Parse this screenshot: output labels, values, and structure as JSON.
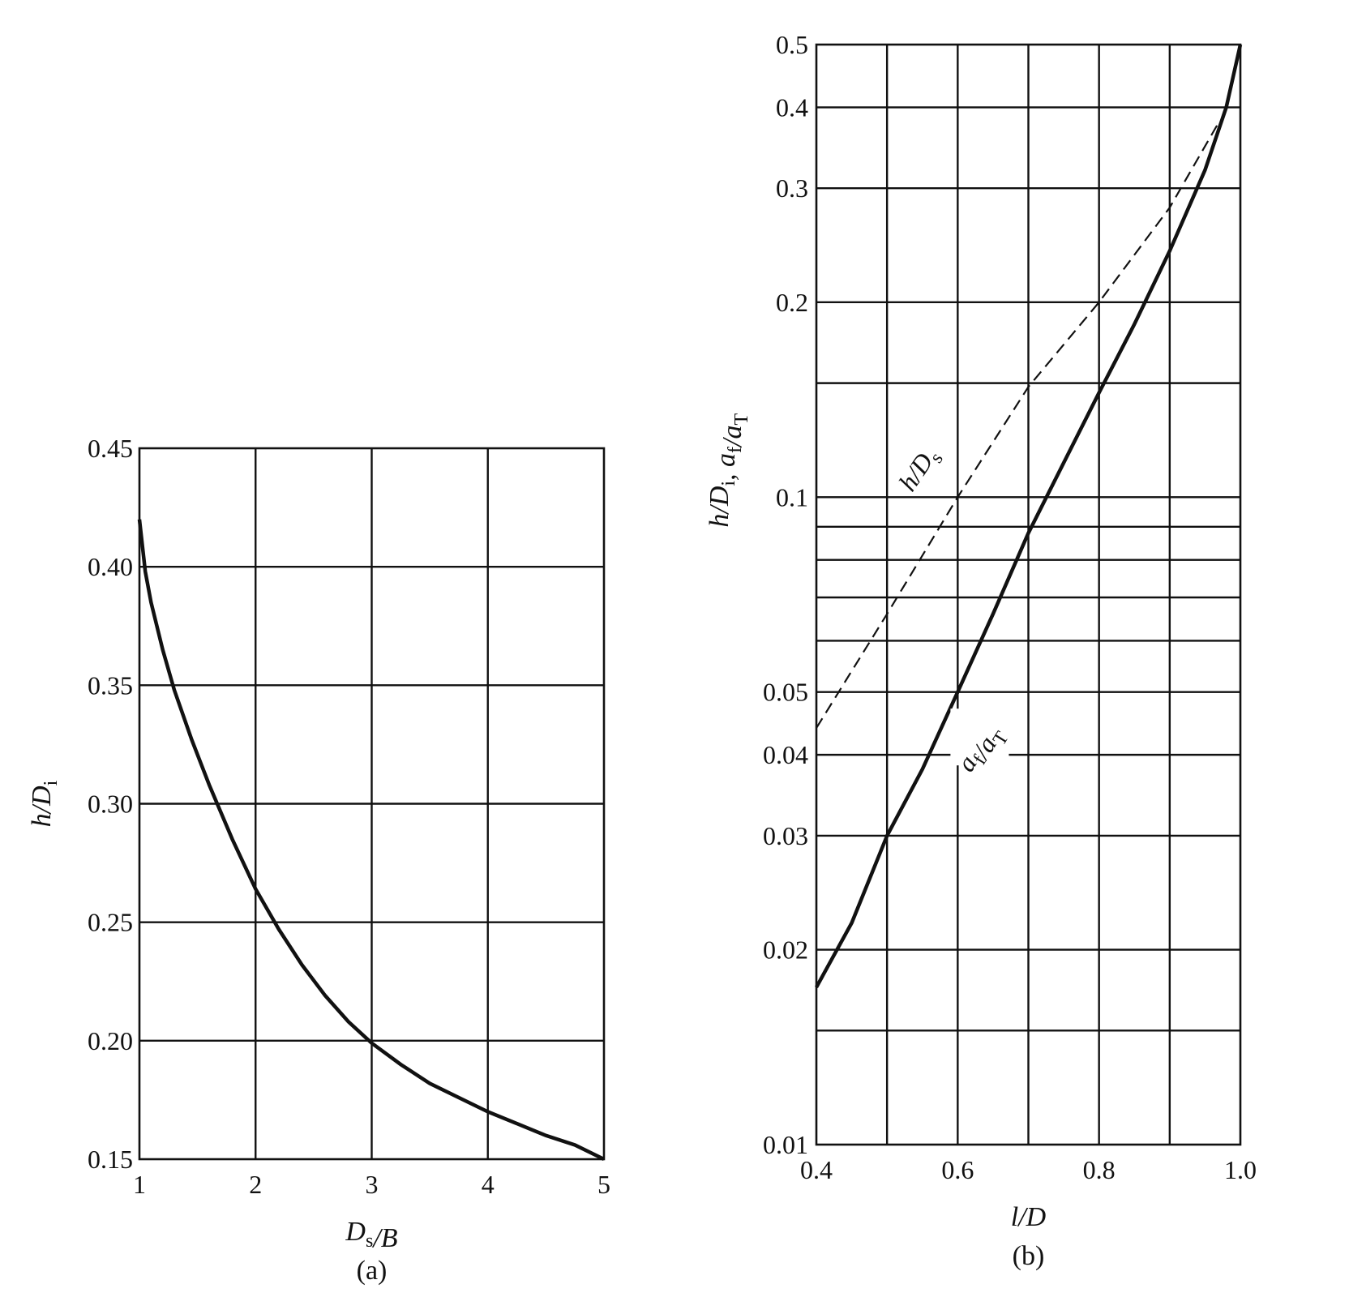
{
  "chart_data": [
    {
      "type": "line",
      "xlabel": "Ds/B",
      "ylabel": "h/Di",
      "caption": "(a)",
      "x_ticks": [
        "1",
        "2",
        "3",
        "4",
        "5"
      ],
      "y_ticks": [
        "0.15",
        "0.20",
        "0.25",
        "0.30",
        "0.35",
        "0.40",
        "0.45"
      ],
      "xlim": [
        1,
        5
      ],
      "ylim": [
        0.15,
        0.45
      ],
      "grid": true,
      "series": [
        {
          "style": "solid",
          "x": [
            1.0,
            1.05,
            1.1,
            1.2,
            1.3,
            1.45,
            1.6,
            1.8,
            2.0,
            2.2,
            2.4,
            2.6,
            2.8,
            3.0,
            3.25,
            3.5,
            3.75,
            4.0,
            4.25,
            4.5,
            4.75,
            5.0
          ],
          "y": [
            0.42,
            0.398,
            0.385,
            0.365,
            0.348,
            0.327,
            0.308,
            0.285,
            0.264,
            0.247,
            0.232,
            0.219,
            0.208,
            0.199,
            0.19,
            0.182,
            0.176,
            0.17,
            0.165,
            0.16,
            0.156,
            0.15
          ]
        }
      ]
    },
    {
      "type": "line",
      "xlabel": "l/D",
      "ylabel": "h/Di, af/aT",
      "caption": "(b)",
      "x_ticks": [
        "0.4",
        "0.6",
        "0.8",
        "1.0"
      ],
      "y_ticks": [
        "0.01",
        "0.02",
        "0.03",
        "0.04",
        "0.05",
        "0.1",
        "0.2",
        "0.3",
        "0.4",
        "0.5"
      ],
      "xlim": [
        0.4,
        1.0
      ],
      "ylim": [
        0.01,
        0.5
      ],
      "y_scale": "log",
      "grid": true,
      "series": [
        {
          "name": "h/Ds",
          "style": "dashed",
          "x": [
            0.4,
            0.5,
            0.6,
            0.7,
            0.8,
            0.9,
            0.97
          ],
          "y": [
            0.044,
            0.066,
            0.1,
            0.148,
            0.2,
            0.28,
            0.38
          ]
        },
        {
          "name": "af/aT",
          "style": "solid",
          "x": [
            0.4,
            0.45,
            0.5,
            0.55,
            0.6,
            0.65,
            0.7,
            0.75,
            0.8,
            0.85,
            0.9,
            0.95,
            0.98,
            1.0
          ],
          "y": [
            0.0175,
            0.022,
            0.03,
            0.038,
            0.05,
            0.066,
            0.088,
            0.113,
            0.145,
            0.185,
            0.24,
            0.32,
            0.4,
            0.5
          ]
        }
      ]
    }
  ]
}
